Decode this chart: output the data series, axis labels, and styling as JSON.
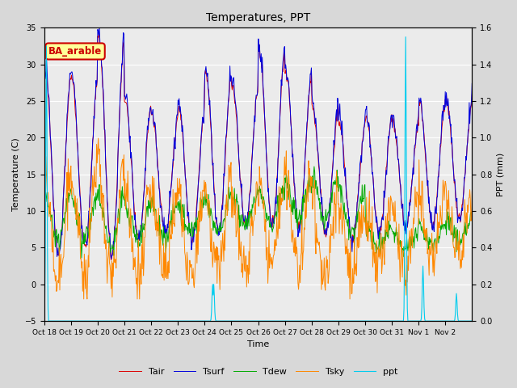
{
  "title": "Temperatures, PPT",
  "xlabel": "Time",
  "ylabel_left": "Temperature (C)",
  "ylabel_right": "PPT (mm)",
  "annotation": "BA_arable",
  "ylim_left": [
    -5,
    35
  ],
  "ylim_right": [
    0.0,
    1.6
  ],
  "yticks_left": [
    -5,
    0,
    5,
    10,
    15,
    20,
    25,
    30,
    35
  ],
  "yticks_right": [
    0.0,
    0.2,
    0.4,
    0.6,
    0.8,
    1.0,
    1.2,
    1.4,
    1.6
  ],
  "colors": {
    "Tair": "#dd0000",
    "Tsurf": "#0000dd",
    "Tdew": "#00aa00",
    "Tsky": "#ff8800",
    "ppt": "#00ccee"
  },
  "bg_color": "#d8d8d8",
  "inner_bg": "#ebebeb",
  "grid_color": "#ffffff",
  "xtick_labels": [
    "Oct 18",
    "Oct 19",
    "Oct 20",
    "Oct 21",
    "Oct 22",
    "Oct 23",
    "Oct 24",
    "Oct 25",
    "Oct 26",
    "Oct 27",
    "Oct 28",
    "Oct 29",
    "Oct 30",
    "Oct 31",
    "Nov 1",
    "Nov 2"
  ],
  "annotation_facecolor": "#ffff99",
  "annotation_edgecolor": "#cc0000",
  "annotation_textcolor": "#cc0000"
}
